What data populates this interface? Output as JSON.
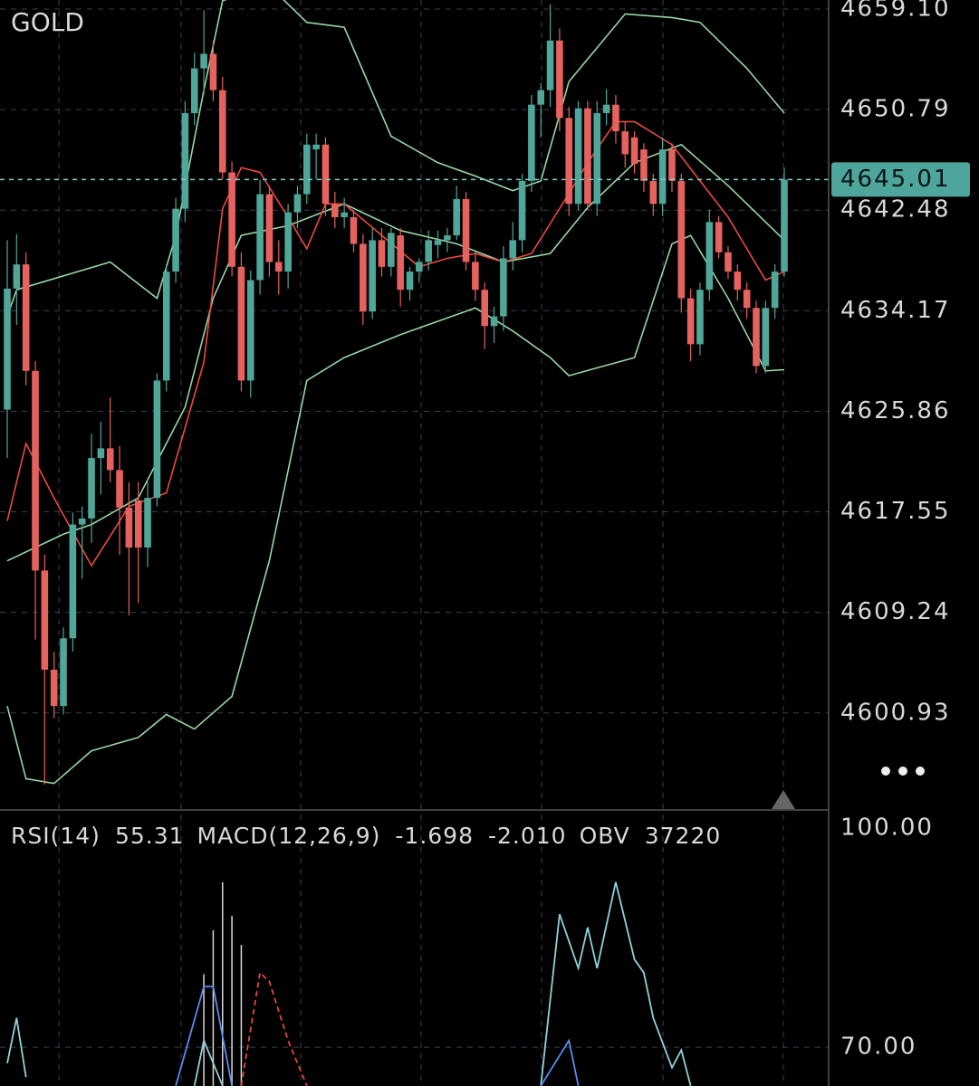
{
  "chart_data": [
    {
      "type": "candlestick",
      "title": "GOLD",
      "up_color": "#4fa699",
      "down_color": "#e5625e",
      "open": [
        4626.0,
        4636.0,
        4638.0,
        4629.2,
        4612.7,
        4604.5,
        4601.5,
        4607.1,
        4616.5,
        4617.0,
        4622.0,
        4622.8,
        4621.0,
        4617.9,
        4618.5,
        4614.6,
        4618.7,
        4628.4,
        4637.4,
        4642.6,
        4650.5,
        4654.2,
        4655.4,
        4652.4,
        4645.6,
        4637.8,
        4628.4,
        4636.7,
        4643.8,
        4638.2,
        4637.4,
        4642.3,
        4643.8,
        4647.5,
        4647.9,
        4643.0,
        4641.9,
        4641.9,
        4639.7,
        4634.1,
        4640.0,
        4637.8,
        4640.4,
        4635.9,
        4637.4,
        4638.2,
        4639.6,
        4640.0,
        4640.4,
        4643.4,
        4638.2,
        4635.9,
        4632.9,
        4633.7,
        4638.5,
        4640.0,
        4644.9,
        4651.2,
        4652.4,
        4656.5,
        4650.1,
        4643.0,
        4650.9,
        4643.0,
        4650.5,
        4651.2,
        4649.0,
        4648.5,
        4647.5,
        4644.9,
        4643.0,
        4647.5,
        4644.9,
        4635.2,
        4631.4,
        4635.9,
        4641.5,
        4639.0,
        4637.4,
        4635.9,
        4634.4,
        4629.6,
        4634.4,
        4637.4
      ],
      "high": [
        4640.0,
        4640.5,
        4639.0,
        4630.0,
        4614.0,
        4606.0,
        4608.0,
        4617.5,
        4618.0,
        4624.0,
        4625.0,
        4627.0,
        4623.0,
        4620.0,
        4620.0,
        4620.0,
        4629.0,
        4638.0,
        4643.5,
        4651.5,
        4655.5,
        4659.0,
        4656.5,
        4653.5,
        4646.5,
        4639.0,
        4637.5,
        4645.0,
        4644.5,
        4640.0,
        4643.0,
        4644.5,
        4648.8,
        4648.8,
        4648.5,
        4644.0,
        4643.5,
        4642.5,
        4640.5,
        4641.0,
        4641.0,
        4641.0,
        4641.0,
        4637.8,
        4638.5,
        4640.8,
        4640.8,
        4641.0,
        4644.5,
        4644.0,
        4639.0,
        4636.5,
        4634.5,
        4639.5,
        4641.5,
        4645.5,
        4652.0,
        4653.0,
        4659.5,
        4657.5,
        4651.0,
        4651.5,
        4651.5,
        4651.5,
        4652.5,
        4652.0,
        4649.8,
        4649.0,
        4648.0,
        4645.5,
        4648.5,
        4648.0,
        4645.5,
        4636.0,
        4636.5,
        4642.5,
        4642.0,
        4639.5,
        4638.0,
        4636.5,
        4635.0,
        4635.0,
        4638.0,
        4646.0
      ],
      "low": [
        4622.0,
        4633.0,
        4628.0,
        4607.0,
        4595.0,
        4600.5,
        4600.8,
        4606.0,
        4612.0,
        4615.0,
        4619.0,
        4620.0,
        4614.0,
        4609.0,
        4610.0,
        4613.0,
        4618.0,
        4627.5,
        4636.5,
        4641.5,
        4649.5,
        4652.0,
        4651.5,
        4645.0,
        4637.0,
        4627.5,
        4627.0,
        4635.5,
        4637.0,
        4635.5,
        4636.0,
        4641.0,
        4643.0,
        4645.0,
        4642.0,
        4641.0,
        4641.0,
        4639.0,
        4633.0,
        4633.5,
        4637.0,
        4637.0,
        4634.5,
        4635.0,
        4636.5,
        4637.5,
        4638.5,
        4639.0,
        4640.0,
        4637.5,
        4635.0,
        4631.0,
        4631.5,
        4632.5,
        4637.5,
        4639.0,
        4644.0,
        4648.5,
        4651.0,
        4649.0,
        4642.0,
        4642.5,
        4642.5,
        4642.0,
        4649.5,
        4648.0,
        4646.0,
        4645.5,
        4644.0,
        4642.0,
        4642.0,
        4644.0,
        4634.0,
        4630.0,
        4630.5,
        4635.0,
        4638.5,
        4636.8,
        4635.0,
        4633.5,
        4629.0,
        4629.0,
        4633.5,
        4637.0
      ],
      "close": [
        4636.0,
        4638.0,
        4629.2,
        4612.7,
        4604.5,
        4601.5,
        4607.1,
        4616.5,
        4617.0,
        4622.0,
        4622.8,
        4621.0,
        4617.9,
        4614.6,
        4614.6,
        4618.7,
        4628.4,
        4637.4,
        4642.6,
        4650.5,
        4654.2,
        4655.4,
        4652.4,
        4645.6,
        4637.8,
        4628.4,
        4636.7,
        4643.8,
        4638.2,
        4637.4,
        4642.3,
        4643.8,
        4647.9,
        4647.9,
        4643.0,
        4641.9,
        4642.3,
        4639.7,
        4634.1,
        4640.0,
        4637.8,
        4640.6,
        4635.9,
        4637.4,
        4638.2,
        4640.0,
        4640.0,
        4640.4,
        4643.4,
        4638.2,
        4635.9,
        4632.9,
        4633.7,
        4638.5,
        4640.0,
        4644.9,
        4651.2,
        4652.4,
        4656.5,
        4650.1,
        4643.0,
        4650.9,
        4643.0,
        4650.5,
        4651.2,
        4649.0,
        4647.1,
        4646.3,
        4644.9,
        4643.0,
        4647.5,
        4644.9,
        4635.2,
        4631.4,
        4635.9,
        4641.5,
        4639.0,
        4637.4,
        4635.9,
        4634.4,
        4629.6,
        4634.4,
        4637.4,
        4645.01
      ],
      "overlays": [
        {
          "color": "#9ad6a4",
          "x": [
            0,
            1,
            11,
            16,
            18,
            21,
            23,
            28,
            32,
            36,
            41,
            46,
            50,
            54,
            57,
            60,
            66,
            71,
            74,
            79,
            83
          ],
          "values": [
            4633.7,
            4635.9,
            4638.2,
            4635.2,
            4640.4,
            4652.4,
            4659.8,
            4661.0,
            4658.0,
            4657.6,
            4648.6,
            4646.4,
            4645.3,
            4644.1,
            4644.9,
            4653.1,
            4658.7,
            4658.4,
            4658.0,
            4654.2,
            4650.5
          ]
        },
        {
          "color": "#9ad6a4",
          "x": [
            0,
            6,
            9,
            14,
            19,
            22,
            25,
            30,
            36,
            42,
            48,
            53,
            58,
            62,
            67,
            72,
            77,
            83
          ],
          "values": [
            4613.5,
            4615.7,
            4616.5,
            4618.7,
            4626.2,
            4635.2,
            4640.4,
            4641.2,
            4643.0,
            4640.8,
            4639.7,
            4638.2,
            4638.9,
            4642.7,
            4646.4,
            4647.9,
            4644.5,
            4640.0
          ]
        },
        {
          "color": "#9ad6a4",
          "x": [
            0,
            2,
            5,
            9,
            14,
            17,
            20,
            24,
            28,
            32,
            36,
            42,
            46,
            50,
            54,
            58,
            60,
            67,
            71,
            73,
            77,
            81,
            83
          ],
          "values": [
            4601.5,
            4595.5,
            4595.1,
            4597.8,
            4598.9,
            4600.8,
            4599.6,
            4602.3,
            4613.5,
            4628.4,
            4630.3,
            4632.2,
            4633.3,
            4634.4,
            4632.5,
            4630.3,
            4628.8,
            4630.3,
            4639.7,
            4640.4,
            4635.2,
            4629.2,
            4629.3
          ]
        },
        {
          "color": "#ec4a40",
          "x": [
            0,
            2,
            5,
            9,
            13,
            17,
            21,
            23,
            25,
            27,
            30,
            32,
            34,
            36,
            40,
            44,
            47,
            50,
            53,
            56,
            59,
            62,
            65,
            67,
            71,
            74,
            77,
            81,
            83
          ],
          "values": [
            4616.8,
            4623.2,
            4618.7,
            4613.1,
            4618.0,
            4619.1,
            4629.9,
            4642.6,
            4646.0,
            4645.6,
            4641.9,
            4639.3,
            4643.0,
            4643.0,
            4640.4,
            4637.8,
            4638.5,
            4638.9,
            4638.2,
            4638.9,
            4642.6,
            4646.4,
            4649.8,
            4649.8,
            4647.9,
            4644.9,
            4641.9,
            4636.7,
            4637.4
          ]
        }
      ],
      "last_price": 4645.01,
      "last_price_color": "#4ea59b",
      "ylim": [
        4592.91,
        4659.85
      ],
      "yticks": [
        {
          "value": 4659.1,
          "label": "4659.10"
        },
        4650.79,
        4642.48,
        4634.17,
        4625.86,
        4617.55,
        4609.24,
        4600.93
      ],
      "grid": true
    },
    {
      "type": "line",
      "indicators": [
        {
          "name": "RSI(14)",
          "values": [
            55.31
          ]
        },
        {
          "name": "MACD(12,26,9)",
          "values": [
            -1.698,
            -2.01
          ],
          "value_labels": [
            "-1.698",
            "-2.010"
          ]
        },
        {
          "name": "OBV",
          "values": [
            37220
          ]
        }
      ],
      "series": [
        {
          "color": "#8fd3da",
          "dashed": false,
          "x": [
            0,
            1,
            2,
            null,
            20,
            21,
            23,
            null,
            57,
            59,
            61,
            62,
            63,
            65,
            67,
            68,
            69,
            71,
            72,
            73
          ],
          "values": [
            67.8,
            74.0,
            65.9,
            null,
            64.7,
            70.9,
            64.7,
            null,
            64.7,
            88.2,
            80.8,
            86.4,
            80.8,
            92.6,
            82.0,
            80.2,
            74.0,
            67.2,
            69.6,
            64.7
          ]
        },
        {
          "color": "#5b8cf0",
          "dashed": false,
          "x": [
            18,
            21,
            22,
            24,
            null,
            57,
            60,
            61
          ],
          "values": [
            64.7,
            78.3,
            78.3,
            64.7,
            null,
            64.7,
            70.9,
            64.7
          ]
        },
        {
          "color": "#e5483f",
          "dashed": true,
          "x": [
            25,
            27,
            28,
            30,
            32
          ],
          "values": [
            64.7,
            80.2,
            79.0,
            70.9,
            64.7
          ]
        }
      ],
      "bars": {
        "color": "#d8d8d8",
        "x": [
          21,
          22,
          23,
          24,
          25
        ],
        "values": [
          80.0,
          86.0,
          92.6,
          88.0,
          84.0
        ]
      },
      "ylim": [
        64.68,
        101.86
      ],
      "yticks": [
        {
          "value": 100,
          "label": "100.00"
        },
        {
          "value": 70,
          "label": "70.00"
        }
      ],
      "grid": true
    }
  ]
}
